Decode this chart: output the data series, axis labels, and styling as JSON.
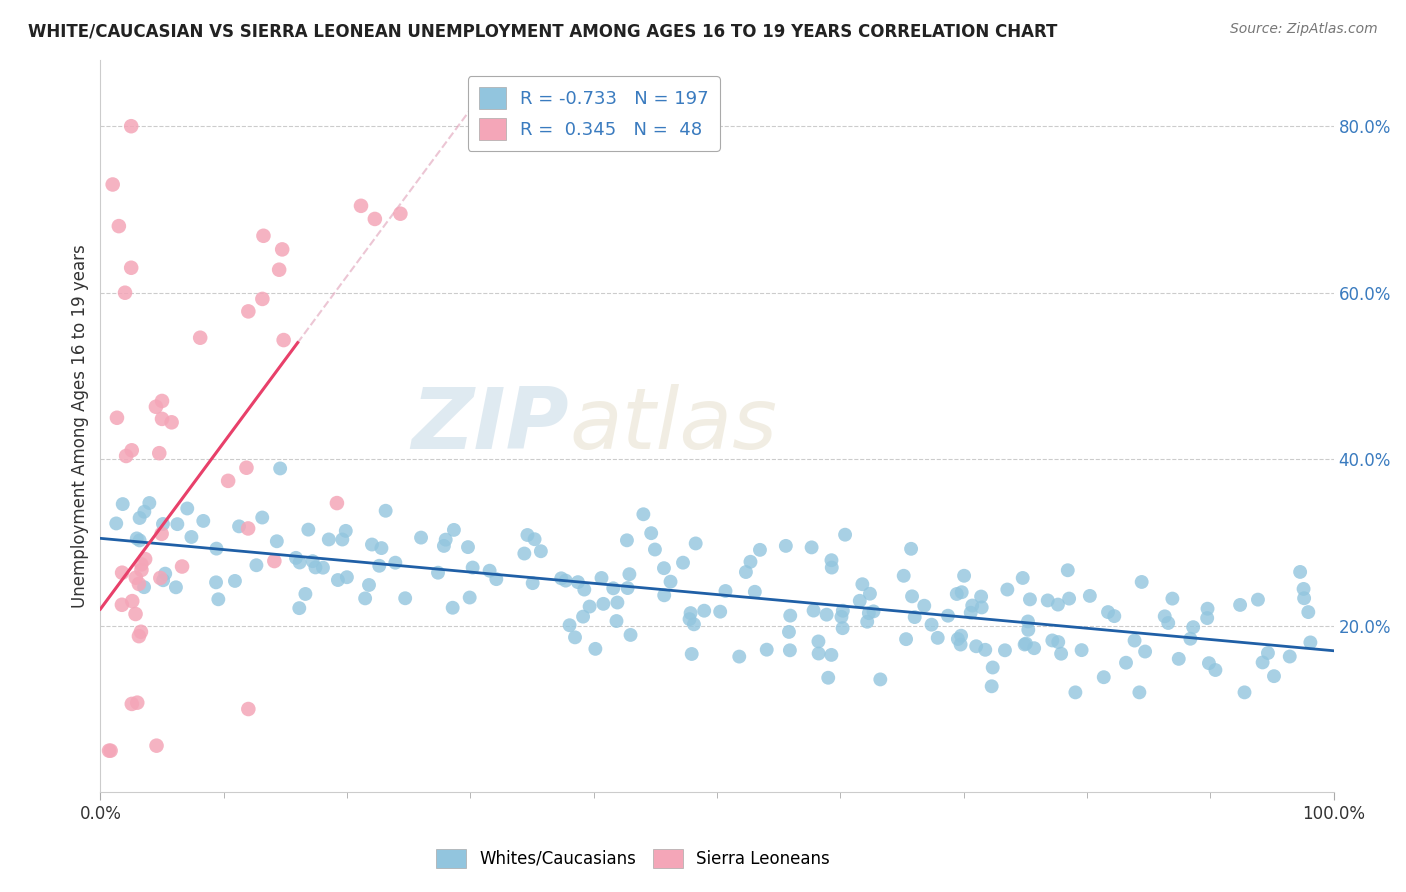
{
  "title": "WHITE/CAUCASIAN VS SIERRA LEONEAN UNEMPLOYMENT AMONG AGES 16 TO 19 YEARS CORRELATION CHART",
  "source": "Source: ZipAtlas.com",
  "ylabel": "Unemployment Among Ages 16 to 19 years",
  "xlim": [
    0.0,
    1.0
  ],
  "ylim": [
    0.0,
    0.88
  ],
  "yticks": [
    0.2,
    0.4,
    0.6,
    0.8
  ],
  "yticklabels": [
    "20.0%",
    "40.0%",
    "60.0%",
    "80.0%"
  ],
  "xtick_positions": [
    0.0,
    1.0
  ],
  "xticklabels": [
    "0.0%",
    "100.0%"
  ],
  "blue_color": "#92c5de",
  "pink_color": "#f4a6b8",
  "blue_line_color": "#1f5fa6",
  "pink_line_color": "#e8406a",
  "pink_line_dashed_color": "#e0a0b8",
  "blue_R": -0.733,
  "blue_N": 197,
  "pink_R": 0.345,
  "pink_N": 48,
  "legend_label_blue": "Whites/Caucasians",
  "legend_label_pink": "Sierra Leoneans",
  "background_color": "#ffffff",
  "grid_color": "#cccccc",
  "seed": 42
}
